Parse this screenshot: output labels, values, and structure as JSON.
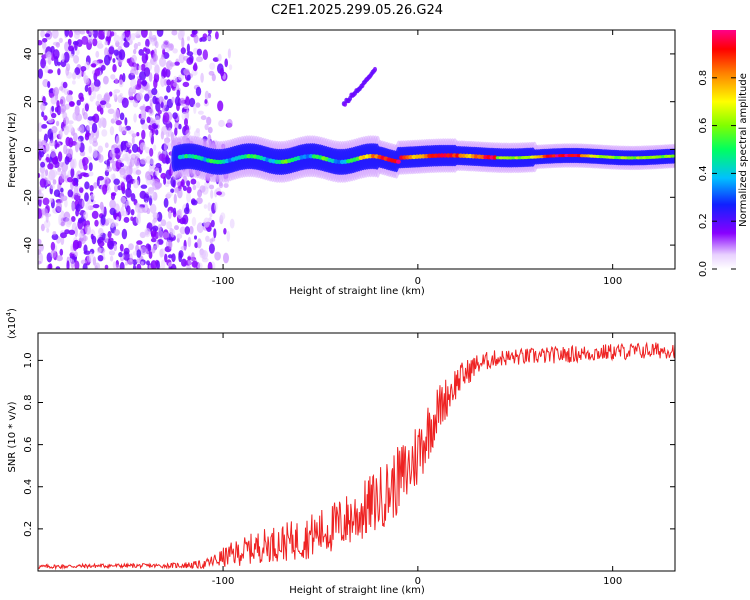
{
  "figure_title": "C2E1.2025.299.05.26.G24",
  "chart_data": [
    {
      "type": "heatmap",
      "xlabel": "Height of straight line (km)",
      "ylabel": "Frequency (Hz)",
      "xlim": [
        -195,
        132
      ],
      "ylim": [
        -50,
        50
      ],
      "x_ticks": [
        -100,
        0,
        100
      ],
      "x_tick_labels": [
        "-100",
        "0",
        "100"
      ],
      "y_ticks": [
        -40,
        -20,
        0,
        20,
        40
      ],
      "y_tick_labels": [
        "-40",
        "-20",
        "0",
        "20",
        "40"
      ],
      "colorbar": {
        "label": "Normalized spectral amplitude",
        "range": [
          0,
          1
        ],
        "ticks": [
          0.0,
          0.2,
          0.4,
          0.6,
          0.8
        ],
        "tick_labels": [
          "0.0",
          "0.2",
          "0.4",
          "0.6",
          "0.8"
        ]
      },
      "features": [
        {
          "name": "noise",
          "x_range": [
            -195,
            -105
          ],
          "f_range": [
            -50,
            50
          ],
          "amplitude": 0.1
        },
        {
          "name": "main-band",
          "x_range": [
            -125,
            132
          ],
          "f_center": -3,
          "amplitude_max": 1.0
        },
        {
          "name": "streak",
          "x_range": [
            -38,
            -22
          ],
          "f_range": [
            19,
            33
          ],
          "amplitude": 0.15
        }
      ]
    },
    {
      "type": "line",
      "xlabel": "Height of straight line (km)",
      "ylabel": "SNR (10 * v/v)",
      "y_multiplier": "(x10",
      "y_multiplier_exp": "4",
      "y_multiplier_close": ")",
      "xlim": [
        -195,
        132
      ],
      "ylim": [
        0,
        1.13
      ],
      "x_ticks": [
        -100,
        0,
        100
      ],
      "x_tick_labels": [
        "-100",
        "0",
        "100"
      ],
      "y_ticks": [
        0.2,
        0.4,
        0.6,
        0.8,
        1.0
      ],
      "y_tick_labels": [
        "0.2",
        "0.4",
        "0.6",
        "0.8",
        "1.0"
      ],
      "series": [
        {
          "name": "SNR",
          "color": "#ee2222",
          "x": [
            -195,
            -160,
            -130,
            -110,
            -95,
            -80,
            -60,
            -45,
            -30,
            -15,
            -5,
            0,
            5,
            10,
            20,
            30,
            40,
            60,
            80,
            100,
            132
          ],
          "mean": [
            0.02,
            0.025,
            0.025,
            0.03,
            0.08,
            0.12,
            0.15,
            0.2,
            0.27,
            0.38,
            0.48,
            0.56,
            0.66,
            0.76,
            0.9,
            0.98,
            1.01,
            1.02,
            1.03,
            1.04,
            1.05
          ],
          "spread": [
            0.01,
            0.01,
            0.01,
            0.02,
            0.06,
            0.08,
            0.1,
            0.12,
            0.14,
            0.16,
            0.17,
            0.17,
            0.15,
            0.12,
            0.08,
            0.05,
            0.04,
            0.04,
            0.04,
            0.04,
            0.04
          ]
        }
      ]
    }
  ]
}
